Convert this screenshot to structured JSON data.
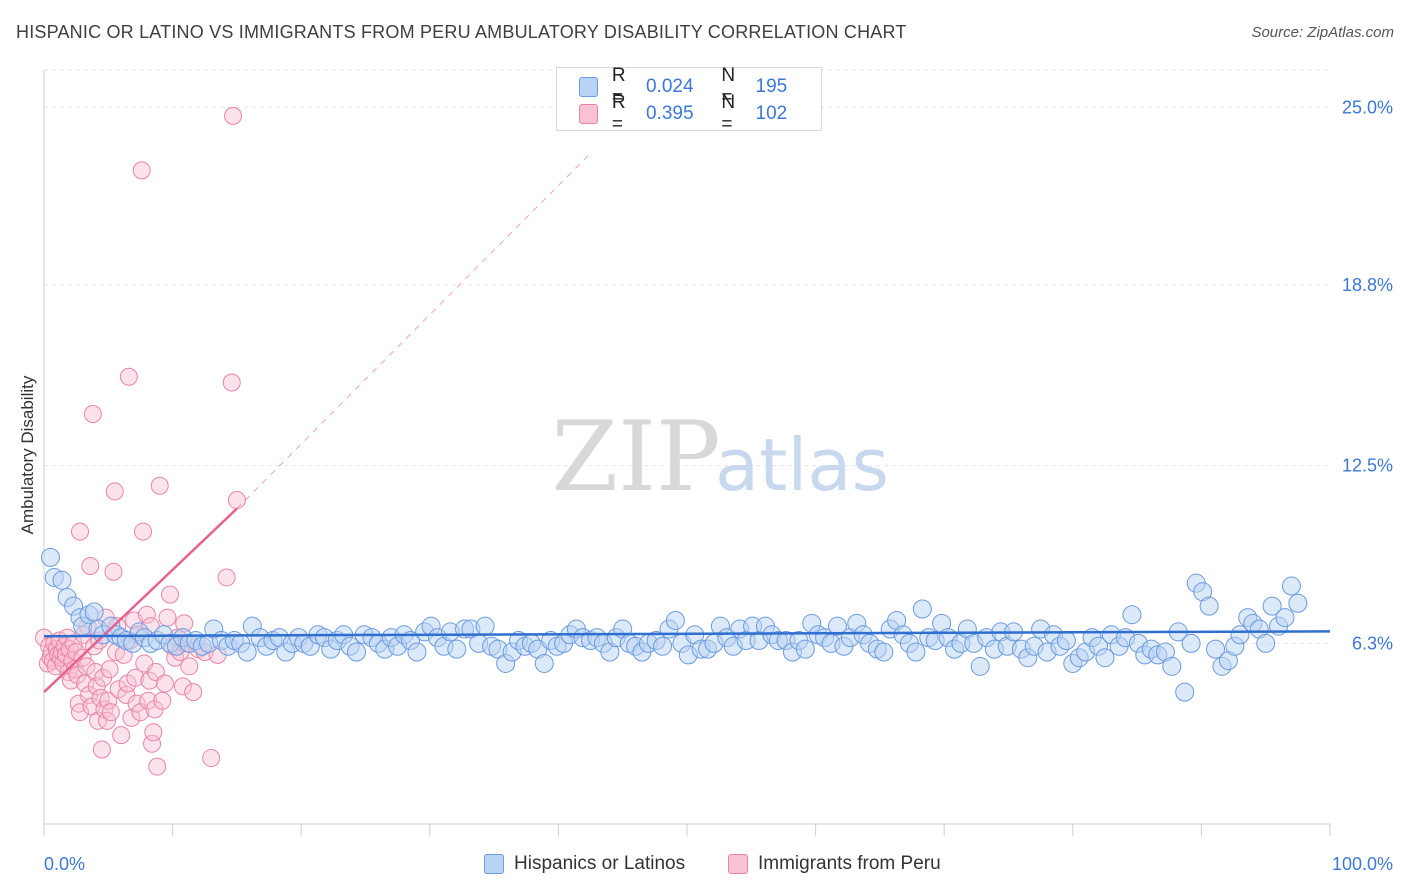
{
  "header": {
    "title": "HISPANIC OR LATINO VS IMMIGRANTS FROM PERU AMBULATORY DISABILITY CORRELATION CHART",
    "source": "Source: ZipAtlas.com"
  },
  "legend": {
    "r_label": "R =",
    "n_label": "N =",
    "series1": {
      "r": "0.024",
      "n": "195"
    },
    "series2": {
      "r": "0.395",
      "n": "102"
    }
  },
  "bottom_legend": {
    "series1": "Hispanics or Latinos",
    "series2": "Immigrants from Peru"
  },
  "colors": {
    "blue_fill": "#b9d3f4",
    "blue_stroke": "#6b9be0",
    "blue_line": "#2f6fd0",
    "pink_fill": "#f8c2d3",
    "pink_stroke": "#ea84a6",
    "pink_line": "#e8608c",
    "tick_label": "#3b78d8"
  },
  "chart_data": {
    "type": "scatter",
    "title": "HISPANIC OR LATINO VS IMMIGRANTS FROM PERU AMBULATORY DISABILITY CORRELATION CHART",
    "xlabel": "",
    "ylabel": "Ambulatory Disability",
    "xlim": [
      0,
      100
    ],
    "ylim": [
      0,
      26.3
    ],
    "x_tick_labels": [
      "0.0%",
      "100.0%"
    ],
    "y_ticks": [
      6.3,
      12.5,
      18.8,
      25.0
    ],
    "y_tick_labels": [
      "6.3%",
      "12.5%",
      "18.8%",
      "25.0%"
    ],
    "grid": true,
    "watermark": {
      "part1": "ZIP",
      "part2": "atlas"
    },
    "series": [
      {
        "name": "Hispanics or Latinos",
        "r": 0.024,
        "n": 195,
        "trend": {
          "x": [
            0,
            100
          ],
          "y": [
            6.55,
            6.72
          ]
        },
        "points": [
          [
            0.5,
            9.3
          ],
          [
            0.8,
            8.6
          ],
          [
            1.4,
            8.5
          ],
          [
            1.8,
            7.9
          ],
          [
            2.3,
            7.6
          ],
          [
            2.8,
            7.2
          ],
          [
            3.0,
            6.9
          ],
          [
            3.5,
            7.3
          ],
          [
            3.9,
            7.4
          ],
          [
            4.2,
            6.8
          ],
          [
            4.6,
            6.6
          ],
          [
            5.2,
            6.9
          ],
          [
            5.6,
            6.6
          ],
          [
            6.0,
            6.5
          ],
          [
            6.4,
            6.4
          ],
          [
            6.9,
            6.3
          ],
          [
            7.4,
            6.7
          ],
          [
            7.8,
            6.5
          ],
          [
            8.3,
            6.3
          ],
          [
            8.8,
            6.4
          ],
          [
            9.3,
            6.6
          ],
          [
            9.8,
            6.3
          ],
          [
            10.3,
            6.2
          ],
          [
            10.8,
            6.5
          ],
          [
            11.3,
            6.3
          ],
          [
            11.8,
            6.4
          ],
          [
            12.3,
            6.2
          ],
          [
            12.8,
            6.3
          ],
          [
            13.2,
            6.8
          ],
          [
            13.8,
            6.4
          ],
          [
            14.3,
            6.2
          ],
          [
            14.8,
            6.4
          ],
          [
            15.3,
            6.3
          ],
          [
            15.8,
            6.0
          ],
          [
            16.2,
            6.9
          ],
          [
            16.8,
            6.5
          ],
          [
            17.3,
            6.2
          ],
          [
            17.8,
            6.4
          ],
          [
            18.3,
            6.5
          ],
          [
            18.8,
            6.0
          ],
          [
            19.3,
            6.3
          ],
          [
            19.8,
            6.5
          ],
          [
            20.2,
            6.3
          ],
          [
            20.7,
            6.2
          ],
          [
            21.3,
            6.6
          ],
          [
            21.8,
            6.5
          ],
          [
            22.3,
            6.1
          ],
          [
            22.8,
            6.4
          ],
          [
            23.3,
            6.6
          ],
          [
            23.8,
            6.2
          ],
          [
            24.3,
            6.0
          ],
          [
            24.9,
            6.6
          ],
          [
            25.5,
            6.5
          ],
          [
            26.0,
            6.3
          ],
          [
            26.5,
            6.1
          ],
          [
            27.0,
            6.5
          ],
          [
            27.5,
            6.2
          ],
          [
            28.0,
            6.6
          ],
          [
            28.5,
            6.4
          ],
          [
            29.0,
            6.0
          ],
          [
            29.6,
            6.7
          ],
          [
            30.1,
            6.9
          ],
          [
            30.6,
            6.5
          ],
          [
            31.1,
            6.2
          ],
          [
            31.6,
            6.7
          ],
          [
            32.1,
            6.1
          ],
          [
            32.7,
            6.8
          ],
          [
            33.2,
            6.8
          ],
          [
            33.8,
            6.3
          ],
          [
            34.3,
            6.9
          ],
          [
            34.8,
            6.2
          ],
          [
            35.3,
            6.1
          ],
          [
            35.9,
            5.6
          ],
          [
            36.4,
            6.0
          ],
          [
            36.9,
            6.4
          ],
          [
            37.4,
            6.2
          ],
          [
            37.9,
            6.3
          ],
          [
            38.4,
            6.1
          ],
          [
            38.9,
            5.6
          ],
          [
            39.4,
            6.4
          ],
          [
            39.9,
            6.2
          ],
          [
            40.4,
            6.3
          ],
          [
            40.9,
            6.6
          ],
          [
            41.4,
            6.8
          ],
          [
            41.9,
            6.5
          ],
          [
            42.5,
            6.4
          ],
          [
            43.0,
            6.5
          ],
          [
            43.5,
            6.3
          ],
          [
            44.0,
            6.0
          ],
          [
            44.5,
            6.5
          ],
          [
            45.0,
            6.8
          ],
          [
            45.5,
            6.3
          ],
          [
            46.0,
            6.2
          ],
          [
            46.5,
            6.0
          ],
          [
            47.0,
            6.3
          ],
          [
            47.6,
            6.4
          ],
          [
            48.1,
            6.2
          ],
          [
            48.6,
            6.8
          ],
          [
            49.1,
            7.1
          ],
          [
            49.6,
            6.3
          ],
          [
            50.1,
            5.9
          ],
          [
            50.6,
            6.6
          ],
          [
            51.1,
            6.1
          ],
          [
            51.6,
            6.1
          ],
          [
            52.1,
            6.3
          ],
          [
            52.6,
            6.9
          ],
          [
            53.1,
            6.5
          ],
          [
            53.6,
            6.2
          ],
          [
            54.1,
            6.8
          ],
          [
            54.6,
            6.4
          ],
          [
            55.1,
            6.9
          ],
          [
            55.6,
            6.4
          ],
          [
            56.1,
            6.9
          ],
          [
            56.6,
            6.6
          ],
          [
            57.1,
            6.4
          ],
          [
            57.7,
            6.4
          ],
          [
            58.2,
            6.0
          ],
          [
            58.7,
            6.4
          ],
          [
            59.2,
            6.1
          ],
          [
            59.7,
            7.0
          ],
          [
            60.2,
            6.6
          ],
          [
            60.7,
            6.5
          ],
          [
            61.2,
            6.3
          ],
          [
            61.7,
            6.9
          ],
          [
            62.2,
            6.2
          ],
          [
            62.7,
            6.5
          ],
          [
            63.2,
            7.0
          ],
          [
            63.7,
            6.6
          ],
          [
            64.2,
            6.3
          ],
          [
            64.8,
            6.1
          ],
          [
            65.3,
            6.0
          ],
          [
            65.8,
            6.8
          ],
          [
            66.3,
            7.1
          ],
          [
            66.8,
            6.6
          ],
          [
            67.3,
            6.3
          ],
          [
            67.8,
            6.0
          ],
          [
            68.3,
            7.5
          ],
          [
            68.8,
            6.5
          ],
          [
            69.3,
            6.4
          ],
          [
            69.8,
            7.0
          ],
          [
            70.3,
            6.5
          ],
          [
            70.8,
            6.1
          ],
          [
            71.3,
            6.3
          ],
          [
            71.8,
            6.8
          ],
          [
            72.3,
            6.3
          ],
          [
            72.8,
            5.5
          ],
          [
            73.3,
            6.5
          ],
          [
            73.9,
            6.1
          ],
          [
            74.4,
            6.7
          ],
          [
            74.9,
            6.2
          ],
          [
            75.4,
            6.7
          ],
          [
            76.0,
            6.1
          ],
          [
            76.5,
            5.8
          ],
          [
            77.0,
            6.2
          ],
          [
            77.5,
            6.8
          ],
          [
            78.0,
            6.0
          ],
          [
            78.5,
            6.6
          ],
          [
            79.0,
            6.2
          ],
          [
            79.5,
            6.4
          ],
          [
            80.0,
            5.6
          ],
          [
            80.5,
            5.8
          ],
          [
            81.0,
            6.0
          ],
          [
            81.5,
            6.5
          ],
          [
            82.0,
            6.2
          ],
          [
            82.5,
            5.8
          ],
          [
            83.0,
            6.6
          ],
          [
            83.6,
            6.2
          ],
          [
            84.1,
            6.5
          ],
          [
            84.6,
            7.3
          ],
          [
            85.1,
            6.3
          ],
          [
            85.6,
            5.9
          ],
          [
            86.1,
            6.1
          ],
          [
            86.6,
            5.9
          ],
          [
            87.2,
            6.0
          ],
          [
            87.7,
            5.5
          ],
          [
            88.2,
            6.7
          ],
          [
            88.7,
            4.6
          ],
          [
            89.2,
            6.3
          ],
          [
            89.6,
            8.4
          ],
          [
            90.1,
            8.1
          ],
          [
            90.6,
            7.6
          ],
          [
            91.1,
            6.1
          ],
          [
            91.6,
            5.5
          ],
          [
            92.1,
            5.7
          ],
          [
            92.6,
            6.2
          ],
          [
            93.0,
            6.6
          ],
          [
            93.6,
            7.2
          ],
          [
            94.0,
            7.0
          ],
          [
            94.5,
            6.8
          ],
          [
            95.0,
            6.3
          ],
          [
            95.5,
            7.6
          ],
          [
            96.0,
            6.9
          ],
          [
            96.5,
            7.2
          ],
          [
            97.0,
            8.3
          ],
          [
            97.5,
            7.7
          ]
        ]
      },
      {
        "name": "Immigrants from Peru",
        "r": 0.395,
        "n": 102,
        "trend": {
          "x": [
            0,
            15
          ],
          "y": [
            4.6,
            11.0
          ]
        },
        "trend_extended": {
          "x": [
            15,
            42.5
          ],
          "y": [
            11.0,
            23.4
          ]
        },
        "points": [
          [
            0.0,
            6.5
          ],
          [
            0.3,
            5.6
          ],
          [
            0.4,
            6.2
          ],
          [
            0.5,
            5.8
          ],
          [
            0.6,
            6.0
          ],
          [
            0.7,
            5.7
          ],
          [
            0.8,
            6.3
          ],
          [
            0.9,
            5.5
          ],
          [
            1.0,
            6.1
          ],
          [
            1.1,
            5.9
          ],
          [
            1.2,
            6.4
          ],
          [
            1.3,
            5.8
          ],
          [
            1.4,
            6.0
          ],
          [
            1.5,
            5.6
          ],
          [
            1.6,
            6.2
          ],
          [
            1.7,
            5.9
          ],
          [
            1.8,
            6.5
          ],
          [
            1.9,
            5.3
          ],
          [
            2.0,
            6.1
          ],
          [
            2.1,
            5.0
          ],
          [
            2.2,
            5.7
          ],
          [
            2.3,
            6.3
          ],
          [
            2.4,
            5.4
          ],
          [
            2.5,
            6.0
          ],
          [
            2.6,
            5.2
          ],
          [
            2.7,
            4.2
          ],
          [
            2.8,
            3.9
          ],
          [
            2.8,
            10.2
          ],
          [
            3.0,
            5.8
          ],
          [
            3.1,
            6.6
          ],
          [
            3.2,
            4.9
          ],
          [
            3.3,
            5.5
          ],
          [
            3.4,
            6.9
          ],
          [
            3.5,
            4.5
          ],
          [
            3.6,
            9.0
          ],
          [
            3.7,
            4.1
          ],
          [
            3.8,
            14.3
          ],
          [
            3.9,
            6.2
          ],
          [
            4.0,
            5.3
          ],
          [
            4.1,
            4.8
          ],
          [
            4.2,
            3.6
          ],
          [
            4.3,
            6.4
          ],
          [
            4.4,
            4.4
          ],
          [
            4.5,
            2.6
          ],
          [
            4.6,
            5.1
          ],
          [
            4.7,
            4.0
          ],
          [
            4.8,
            7.2
          ],
          [
            4.9,
            3.6
          ],
          [
            5.0,
            4.3
          ],
          [
            5.1,
            5.4
          ],
          [
            5.2,
            3.9
          ],
          [
            5.4,
            8.8
          ],
          [
            5.5,
            11.6
          ],
          [
            5.6,
            6.0
          ],
          [
            5.7,
            6.9
          ],
          [
            5.8,
            4.7
          ],
          [
            6.0,
            3.1
          ],
          [
            6.2,
            5.9
          ],
          [
            6.4,
            4.5
          ],
          [
            6.5,
            4.9
          ],
          [
            6.6,
            15.6
          ],
          [
            6.7,
            6.4
          ],
          [
            6.8,
            3.7
          ],
          [
            7.0,
            7.1
          ],
          [
            7.1,
            5.1
          ],
          [
            7.2,
            4.2
          ],
          [
            7.3,
            6.6
          ],
          [
            7.5,
            3.9
          ],
          [
            7.6,
            22.8
          ],
          [
            7.7,
            10.2
          ],
          [
            7.8,
            5.6
          ],
          [
            8.0,
            7.3
          ],
          [
            8.1,
            4.3
          ],
          [
            8.2,
            5.0
          ],
          [
            8.3,
            6.9
          ],
          [
            8.4,
            2.8
          ],
          [
            8.5,
            3.2
          ],
          [
            8.6,
            4.0
          ],
          [
            8.7,
            5.3
          ],
          [
            8.8,
            2.0
          ],
          [
            9.0,
            11.8
          ],
          [
            9.2,
            4.3
          ],
          [
            9.4,
            4.9
          ],
          [
            9.6,
            7.2
          ],
          [
            9.8,
            8.0
          ],
          [
            10.0,
            6.2
          ],
          [
            10.2,
            5.8
          ],
          [
            10.4,
            6.5
          ],
          [
            10.6,
            6.0
          ],
          [
            10.8,
            4.8
          ],
          [
            10.9,
            7.0
          ],
          [
            11.1,
            6.3
          ],
          [
            11.3,
            5.5
          ],
          [
            11.6,
            4.6
          ],
          [
            12.0,
            6.1
          ],
          [
            12.5,
            6.0
          ],
          [
            13.0,
            2.3
          ],
          [
            13.5,
            5.9
          ],
          [
            14.2,
            8.6
          ],
          [
            14.6,
            15.4
          ],
          [
            15.0,
            11.3
          ],
          [
            14.7,
            24.7
          ]
        ]
      }
    ]
  }
}
